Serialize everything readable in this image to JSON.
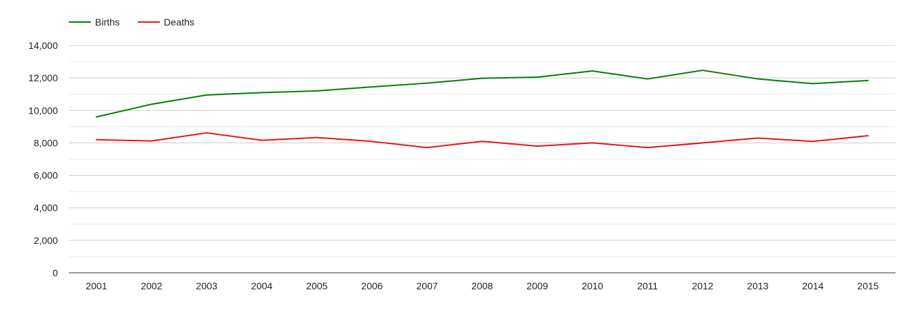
{
  "chart_data": {
    "type": "line",
    "title": "",
    "xlabel": "",
    "ylabel": "",
    "categories": [
      "2001",
      "2002",
      "2003",
      "2004",
      "2005",
      "2006",
      "2007",
      "2008",
      "2009",
      "2010",
      "2011",
      "2012",
      "2013",
      "2014",
      "2015"
    ],
    "series": [
      {
        "name": "Births",
        "color": "#008000",
        "values": [
          9600,
          10380,
          10950,
          11100,
          11200,
          11450,
          11680,
          11980,
          12050,
          12430,
          11940,
          12470,
          11940,
          11650,
          11840
        ]
      },
      {
        "name": "Deaths",
        "color": "#e8141a",
        "values": [
          8200,
          8120,
          8620,
          8160,
          8330,
          8090,
          7710,
          8100,
          7800,
          8000,
          7710,
          8000,
          8300,
          8090,
          8440
        ]
      }
    ],
    "ylim": [
      0,
      14000
    ],
    "yticks": [
      0,
      2000,
      4000,
      6000,
      8000,
      10000,
      12000,
      14000
    ],
    "ytick_labels": [
      "0",
      "2,000",
      "4,000",
      "6,000",
      "8,000",
      "10,000",
      "12,000",
      "14,000"
    ],
    "grid": true,
    "legend_position": "top-left"
  }
}
